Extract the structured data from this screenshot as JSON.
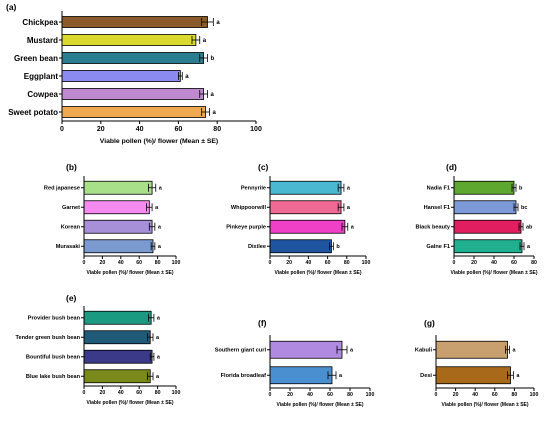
{
  "chart_data": [
    {
      "panel": "(a)",
      "type": "bar",
      "orientation": "horizontal",
      "categories": [
        "Chickpea",
        "Mustard",
        "Green bean",
        "Eggplant",
        "Cowpea",
        "Sweet potato"
      ],
      "values": [
        75,
        69,
        73,
        61,
        73,
        74
      ],
      "errors": [
        3,
        2,
        2,
        1,
        2,
        2
      ],
      "letters": [
        "a",
        "a",
        "b",
        "a",
        "a",
        "a"
      ],
      "colors": [
        "#8B5A2B",
        "#D9D92E",
        "#2A7D8E",
        "#8A8AF0",
        "#C08AD0",
        "#F0A850"
      ],
      "xlabel": "Viable pollen (%)/ flower (Mean ± SE)",
      "xlim": [
        0,
        100
      ],
      "ticks": [
        "0",
        "20",
        "40",
        "60",
        "80",
        "100"
      ]
    },
    {
      "panel": "(b)",
      "type": "bar",
      "orientation": "horizontal",
      "categories": [
        "Red japanese",
        "Garnet",
        "Korean",
        "Murasaki"
      ],
      "values": [
        74,
        71,
        74,
        75
      ],
      "errors": [
        4,
        3,
        3,
        2
      ],
      "letters": [
        "a",
        "a",
        "a",
        "a"
      ],
      "colors": [
        "#A8E08A",
        "#F58AF0",
        "#A890D8",
        "#7A9AD0"
      ],
      "xlabel": "Viable pollen (%)/ flower (Mean ± SE)",
      "xlim": [
        0,
        100
      ],
      "ticks": [
        "0",
        "20",
        "40",
        "60",
        "80",
        "100"
      ]
    },
    {
      "panel": "(c)",
      "type": "bar",
      "orientation": "horizontal",
      "categories": [
        "Pennyrile",
        "Whippoorwill",
        "Pinkeye purple",
        "Dixilee"
      ],
      "values": [
        74,
        74,
        78,
        64
      ],
      "errors": [
        3,
        3,
        3,
        2
      ],
      "letters": [
        "a",
        "a",
        "a",
        "b"
      ],
      "colors": [
        "#4AB8D0",
        "#F06A95",
        "#F040C8",
        "#1F55A0"
      ],
      "xlabel": "Viable pollen (%)/ flower (Mean ± SE)",
      "xlim": [
        0,
        100
      ],
      "ticks": [
        "0",
        "20",
        "40",
        "60",
        "80",
        "100"
      ]
    },
    {
      "panel": "(d)",
      "type": "bar",
      "orientation": "horizontal",
      "categories": [
        "Nadia F1",
        "Hansel F1",
        "Black beauty",
        "Galne F1"
      ],
      "values": [
        60,
        62,
        67,
        68
      ],
      "errors": [
        2,
        2,
        2,
        2
      ],
      "letters": [
        "b",
        "bc",
        "ab",
        "a"
      ],
      "colors": [
        "#5EA830",
        "#7C9AD8",
        "#E01E60",
        "#20B090"
      ],
      "xlabel": "Viable pollen (%)/ flower (Mean ± SE)",
      "xlim": [
        0,
        80
      ],
      "ticks": [
        "0",
        "20",
        "40",
        "60",
        "80"
      ]
    },
    {
      "panel": "(e)",
      "type": "bar",
      "orientation": "horizontal",
      "categories": [
        "Provider bush bean",
        "Tender green bush bean",
        "Bountiful bush bean",
        "Blue lake bush bean"
      ],
      "values": [
        73,
        72,
        74,
        72
      ],
      "errors": [
        3,
        3,
        2,
        3
      ],
      "letters": [
        "a",
        "a",
        "a",
        "a"
      ],
      "colors": [
        "#1A9A80",
        "#1F5A78",
        "#3A3A88",
        "#7A8A1A"
      ],
      "xlabel": "Viable pollen (%)/ flower (Mean ± SE)",
      "xlim": [
        0,
        100
      ],
      "ticks": [
        "0",
        "20",
        "40",
        "60",
        "80",
        "100"
      ]
    },
    {
      "panel": "(f)",
      "type": "bar",
      "orientation": "horizontal",
      "categories": [
        "Southern giant curl",
        "Florida broadleaf"
      ],
      "values": [
        72,
        62
      ],
      "errors": [
        5,
        4
      ],
      "letters": [
        "a",
        "a"
      ],
      "colors": [
        "#B08AE0",
        "#4A90D0"
      ],
      "xlabel": "Viable pollen (%)/ flower (Mean ± SE)",
      "xlim": [
        0,
        100
      ],
      "ticks": [
        "0",
        "20",
        "40",
        "60",
        "80",
        "100"
      ]
    },
    {
      "panel": "(g)",
      "type": "bar",
      "orientation": "horizontal",
      "categories": [
        "Kabuli",
        "Desi"
      ],
      "values": [
        73,
        76
      ],
      "errors": [
        2,
        3
      ],
      "letters": [
        "a",
        "a"
      ],
      "colors": [
        "#C8A070",
        "#A86A1A"
      ],
      "xlabel": "Viable pollen (%)/ flower (Mean ± SE)",
      "xlim": [
        0,
        100
      ],
      "ticks": [
        "0",
        "20",
        "40",
        "60",
        "80",
        "100"
      ]
    }
  ]
}
